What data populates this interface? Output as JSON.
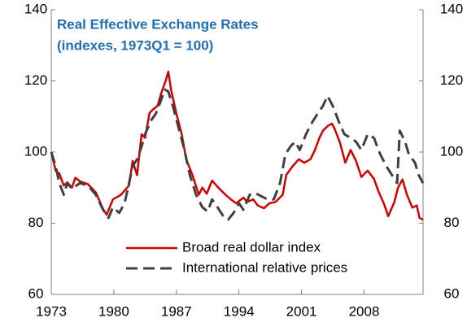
{
  "chart_data": {
    "type": "line",
    "title": "Real Effective Exchange Rates",
    "subtitle": "(indexes, 1973Q1 = 100)",
    "xlim": [
      1973,
      2014.6
    ],
    "xticks": [
      1973,
      1980,
      1987,
      1994,
      2001,
      2008
    ],
    "ylim": [
      60,
      140
    ],
    "yticks": [
      60,
      80,
      100,
      120,
      140
    ],
    "y2lim": [
      60,
      140
    ],
    "y2ticks": [
      60,
      80,
      100,
      120,
      140
    ],
    "grid": false,
    "legend": "bottom",
    "series": [
      {
        "name": "Broad real dollar index",
        "color": "#d40000",
        "dash": false,
        "x": [
          1973.0,
          1973.5,
          1973.9,
          1974.4,
          1974.8,
          1975.3,
          1975.7,
          1976.2,
          1977.1,
          1978.0,
          1978.8,
          1979.2,
          1979.9,
          1980.8,
          1981.7,
          1982.1,
          1982.6,
          1983.1,
          1983.5,
          1984.0,
          1984.4,
          1984.9,
          1985.3,
          1985.8,
          1986.1,
          1986.4,
          1987.0,
          1987.6,
          1988.1,
          1988.8,
          1989.5,
          1989.9,
          1990.4,
          1991.0,
          1991.7,
          1992.5,
          1993.1,
          1993.7,
          1994.5,
          1994.9,
          1995.6,
          1996.1,
          1996.8,
          1997.4,
          1998.1,
          1998.9,
          1999.3,
          2000.0,
          2000.7,
          2001.3,
          2002.0,
          2002.5,
          2003.0,
          2003.4,
          2003.9,
          2004.4,
          2004.7,
          2005.3,
          2005.9,
          2006.5,
          2007.1,
          2007.7,
          2008.4,
          2009.1,
          2009.6,
          2010.2,
          2010.7,
          2011.4,
          2011.8,
          2012.3,
          2012.8,
          2013.4,
          2013.9,
          2014.2,
          2014.6
        ],
        "values": [
          100,
          94.7,
          94,
          90.6,
          91.5,
          90,
          92.8,
          91.8,
          91,
          88.6,
          84,
          82.4,
          86.7,
          88,
          90.6,
          97.5,
          93.5,
          105,
          104,
          111,
          112,
          113,
          116.5,
          120,
          122.6,
          117.6,
          110.8,
          105,
          98,
          93.5,
          88,
          90,
          88.3,
          92,
          90,
          88,
          86.7,
          85.6,
          87.2,
          86,
          86.7,
          85,
          84.2,
          85.6,
          86,
          88,
          93.6,
          96,
          98,
          97,
          98,
          100.6,
          104,
          106,
          107.3,
          108,
          106.6,
          102.7,
          97,
          100.6,
          97.5,
          93,
          94.8,
          92.5,
          89,
          85.6,
          82,
          86,
          90,
          92.3,
          88,
          84.4,
          85,
          81.5,
          81
        ]
      },
      {
        "name": "International relative prices",
        "color": "#404040",
        "dash": true,
        "x": [
          1973.0,
          1973.5,
          1973.9,
          1974.4,
          1974.8,
          1975.3,
          1976.2,
          1977.1,
          1978.0,
          1978.8,
          1979.4,
          1979.9,
          1980.6,
          1981.2,
          1981.7,
          1982.1,
          1982.6,
          1983.1,
          1983.5,
          1984.2,
          1984.7,
          1985.2,
          1985.7,
          1986.1,
          1986.6,
          1987.2,
          1987.9,
          1988.5,
          1989.2,
          1989.9,
          1990.5,
          1991.0,
          1991.6,
          1992.2,
          1992.8,
          1993.4,
          1994.0,
          1994.5,
          1995.2,
          1995.8,
          1996.5,
          1997.2,
          1997.9,
          1998.6,
          1999.2,
          1999.8,
          2000.3,
          2000.8,
          2001.5,
          2002.2,
          2002.8,
          2003.4,
          2003.9,
          2004.5,
          2005.2,
          2005.8,
          2006.5,
          2007.1,
          2007.7,
          2008.4,
          2009.1,
          2009.8,
          2010.5,
          2011.1,
          2011.7,
          2012.0,
          2012.6,
          2013.0,
          2013.7,
          2014.1,
          2014.6
        ],
        "values": [
          100,
          96,
          91.3,
          88,
          91.3,
          89.7,
          91.3,
          90.6,
          88,
          83.8,
          81.5,
          84.5,
          82.9,
          85.6,
          91.3,
          96,
          98,
          101.5,
          105,
          109,
          110.8,
          114,
          117.6,
          117,
          113,
          107.3,
          100.6,
          93.6,
          88,
          84.5,
          83.3,
          86.7,
          84.5,
          82.2,
          81,
          82.9,
          85.6,
          83.8,
          88,
          88.5,
          87.6,
          86.7,
          86.7,
          91.3,
          99.4,
          101.7,
          102.9,
          100.6,
          105,
          108.4,
          110.8,
          113,
          115.8,
          113,
          108.4,
          105,
          104,
          102.9,
          100.6,
          105,
          104,
          99.4,
          96,
          93.6,
          91.3,
          106,
          102.9,
          99.4,
          97,
          93.6,
          91.3
        ]
      }
    ]
  }
}
